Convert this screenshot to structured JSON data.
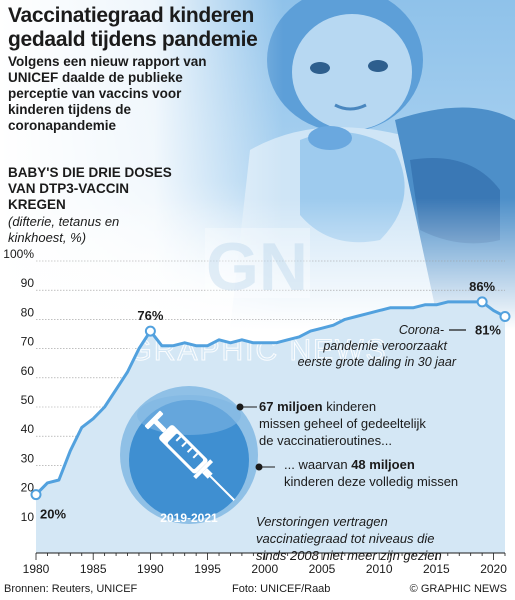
{
  "title": "Vaccinatiegraad kinderen gedaald tijdens pandemie",
  "subtitle": "Volgens een nieuw rapport van UNICEF  daalde de publieke perceptie van vaccins voor kinderen tijdens de coronapandemie",
  "heading": "BABY'S DIE DRIE DOSES VAN DTP3-VACCIN KREGEN",
  "heading_note": "(difterie, tetanus en kinkhoest, %)",
  "watermark": "GRAPHIC NEWS",
  "logo_text": "GN",
  "colors": {
    "area_fill": "#d4e7f5",
    "line": "#52a1de",
    "grid": "#9a9a9a",
    "circle": "#7db8e4",
    "circle_dark": "#3b87c9",
    "photo_tint": "#62a6dd"
  },
  "chart_data": {
    "type": "area",
    "title": "BABY'S DIE DRIE DOSES VAN DTP3-VACCIN KREGEN",
    "subtitle": "(difterie, tetanus en kinkhoest, %)",
    "xlim": [
      1980,
      2021
    ],
    "ylim": [
      0,
      100
    ],
    "x_ticks": [
      1980,
      1985,
      1990,
      1995,
      2000,
      2005,
      2010,
      2015,
      2020
    ],
    "y_ticks": [
      0,
      10,
      20,
      30,
      40,
      50,
      60,
      70,
      80,
      90,
      100
    ],
    "y_tick_labels": [
      "",
      "10",
      "20",
      "30",
      "40",
      "50",
      "60",
      "70",
      "80",
      "90",
      "100%"
    ],
    "grid": true,
    "x": [
      1980,
      1981,
      1982,
      1983,
      1984,
      1985,
      1986,
      1987,
      1988,
      1989,
      1990,
      1991,
      1992,
      1993,
      1994,
      1995,
      1996,
      1997,
      1998,
      1999,
      2000,
      2001,
      2002,
      2003,
      2004,
      2005,
      2006,
      2007,
      2008,
      2009,
      2010,
      2011,
      2012,
      2013,
      2014,
      2015,
      2016,
      2017,
      2018,
      2019,
      2020,
      2021
    ],
    "y": [
      20,
      24,
      25,
      35,
      43,
      46,
      50,
      56,
      62,
      70,
      76,
      71,
      71,
      72,
      71,
      71,
      73,
      72,
      73,
      72,
      72,
      72,
      73,
      74,
      76,
      77,
      78,
      80,
      81,
      82,
      83,
      84,
      84,
      84,
      85,
      85,
      86,
      86,
      86,
      86,
      83,
      81
    ],
    "annotations": [
      {
        "label": "20%",
        "x": 1980,
        "y": 20
      },
      {
        "label": "76%",
        "x": 1990,
        "y": 76
      },
      {
        "label": "86%",
        "x": 2019,
        "y": 86
      },
      {
        "label": "81%",
        "x": 2021,
        "y": 81
      }
    ],
    "covid_note": "Corona-pandemie veroorzaakt eerste grote daling in 30 jaar",
    "period_label": "2019-2021",
    "stat1_value": "67 miljoen",
    "stat1_text": "kinderen missen geheel of gedeeltelijk de vaccinatieroutines...",
    "stat2_prefix": "... waarvan ",
    "stat2_value": "48 miljoen",
    "stat2_text": "kinderen deze volledig missen",
    "bottom_note": "Verstoringen vertragen vaccinatiegraad tot niveaus die sinds 2008 niet meer zijn gezien"
  },
  "footer": {
    "sources": "Bronnen: Reuters, UNICEF",
    "photo": "Foto: UNICEF/Raab",
    "credit": "© GRAPHIC NEWS"
  }
}
